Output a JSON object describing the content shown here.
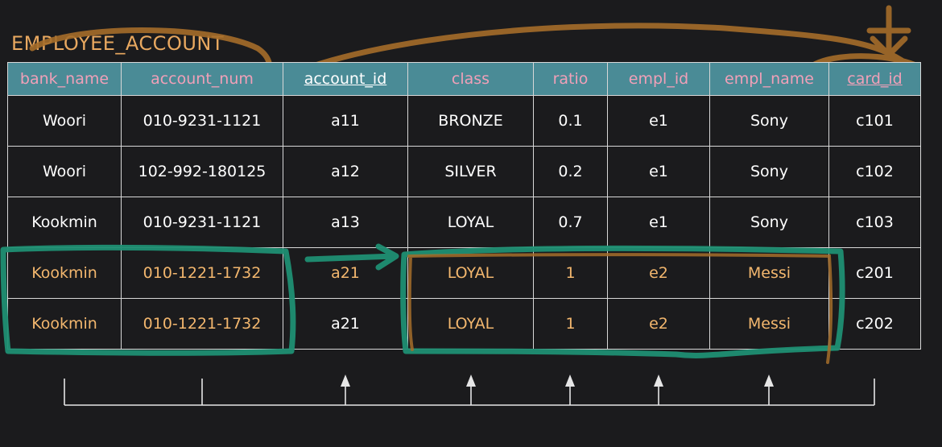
{
  "table": {
    "name": "EMPLOYEE_ACCOUNT",
    "columns": [
      {
        "label": "bank_name",
        "style": "pink"
      },
      {
        "label": "account_num",
        "style": "pink"
      },
      {
        "label": "account_id",
        "style": "underline"
      },
      {
        "label": "class",
        "style": "pink"
      },
      {
        "label": "ratio",
        "style": "pink"
      },
      {
        "label": "empl_id",
        "style": "pink"
      },
      {
        "label": "empl_name",
        "style": "pink"
      },
      {
        "label": "card_id",
        "style": "pink-underline"
      }
    ],
    "rows": [
      [
        "Woori",
        "010-9231-1121",
        "a11",
        "BRONZE",
        "0.1",
        "e1",
        "Sony",
        "c101"
      ],
      [
        "Woori",
        "102-992-180125",
        "a12",
        "SILVER",
        "0.2",
        "e1",
        "Sony",
        "c102"
      ],
      [
        "Kookmin",
        "010-9231-1121",
        "a13",
        "LOYAL",
        "0.7",
        "e1",
        "Sony",
        "c103"
      ],
      [
        "Kookmin",
        "010-1221-1732",
        "a21",
        "LOYAL",
        "1",
        "e2",
        "Messi",
        "c201"
      ],
      [
        "Kookmin",
        "010-1221-1732",
        "a21",
        "LOYAL",
        "1",
        "e2",
        "Messi",
        "c202"
      ]
    ]
  },
  "colors": {
    "header_bg": "#4a8b96",
    "header_text_pink": "#f0a0b8",
    "highlight_text": "#f3b76e",
    "annotation_orange": "#a56d2a",
    "annotation_teal": "#1f8f73"
  }
}
